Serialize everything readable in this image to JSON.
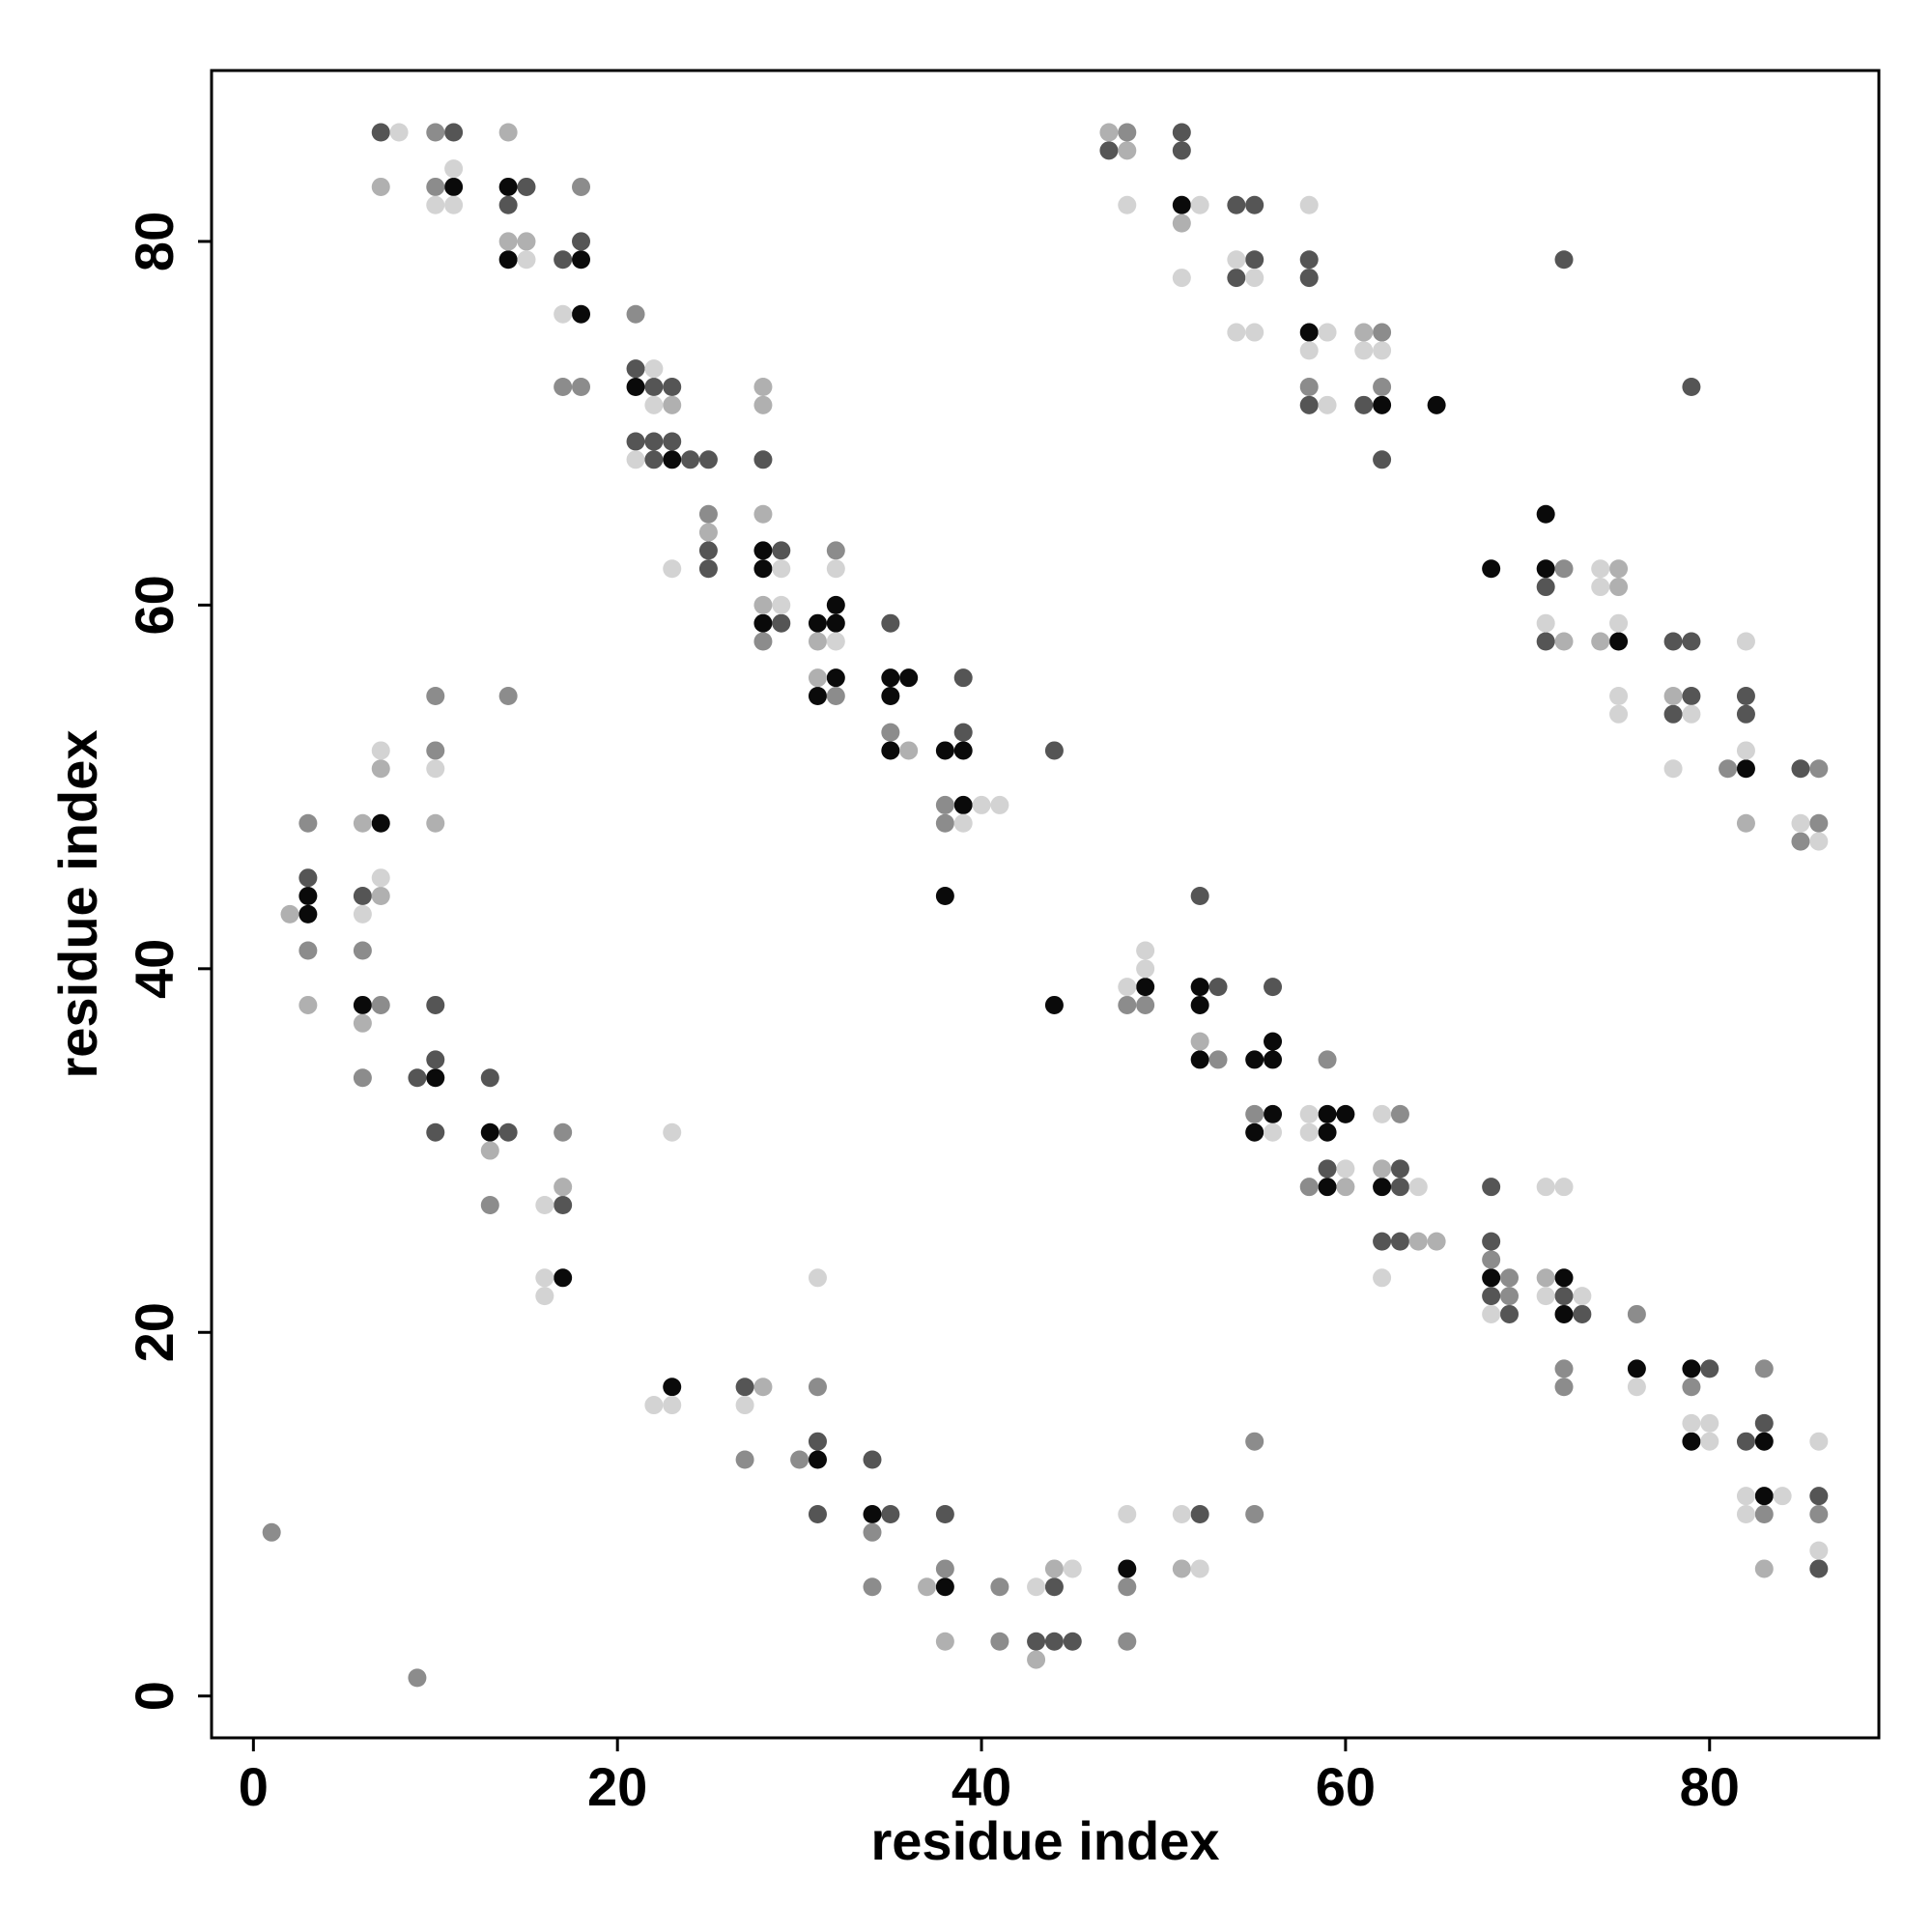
{
  "chart_data": {
    "type": "scatter",
    "xlabel": "residue index",
    "ylabel": "residue index",
    "xlim": [
      -2.3,
      89.3
    ],
    "ylim": [
      -2.3,
      89.4
    ],
    "xticks": [
      0,
      20,
      40,
      60,
      80
    ],
    "yticks": [
      0,
      20,
      40,
      60,
      80
    ],
    "grid": false,
    "series": [
      {
        "color": "#0a0a0a",
        "x": [
          11,
          14,
          14,
          18,
          18,
          21,
          23,
          28,
          28,
          28,
          31,
          32,
          32,
          32,
          31,
          35,
          36,
          35,
          35,
          38,
          39,
          39,
          38,
          7,
          3,
          3,
          6,
          10,
          13,
          17,
          23,
          31,
          34,
          38,
          48,
          44,
          49,
          52,
          52,
          52,
          55,
          56,
          56,
          56,
          55,
          59,
          60,
          59,
          59,
          62,
          68,
          72,
          72,
          76,
          79,
          79,
          83,
          83,
          51,
          58,
          62,
          65,
          71,
          68,
          71,
          75,
          82
        ],
        "values": [
          83,
          83,
          79,
          79,
          76,
          72,
          68,
          63,
          62,
          59,
          59,
          59,
          60,
          56,
          55,
          56,
          56,
          55,
          52,
          52,
          52,
          49,
          44,
          48,
          44,
          43,
          38,
          34,
          31,
          23,
          17,
          13,
          10,
          6,
          7,
          38,
          39,
          39,
          38,
          35,
          35,
          35,
          36,
          32,
          31,
          32,
          32,
          31,
          28,
          28,
          23,
          23,
          21,
          18,
          18,
          14,
          14,
          11,
          82,
          75,
          71,
          71,
          65,
          62,
          62,
          58,
          51
        ]
      },
      {
        "color": "#555555",
        "x": [
          7,
          11,
          15,
          14,
          17,
          18,
          21,
          22,
          23,
          21,
          22,
          23,
          22,
          24,
          25,
          25,
          25,
          28,
          29,
          29,
          35,
          39,
          39,
          44,
          3,
          6,
          10,
          9,
          10,
          13,
          10,
          14,
          17,
          27,
          31,
          31,
          34,
          35,
          38,
          44,
          43,
          44,
          45,
          52,
          52,
          53,
          56,
          59,
          63,
          63,
          62,
          63,
          68,
          68,
          68,
          69,
          72,
          73,
          80,
          82,
          83,
          86,
          86,
          47,
          51,
          51,
          54,
          55,
          55,
          54,
          58,
          58,
          58,
          61,
          62,
          72,
          79,
          71,
          71,
          78,
          79,
          79,
          78,
          82,
          82,
          85
        ],
        "values": [
          86,
          86,
          83,
          82,
          79,
          80,
          73,
          72,
          72,
          69,
          69,
          69,
          68,
          68,
          68,
          63,
          62,
          68,
          63,
          59,
          59,
          56,
          53,
          52,
          45,
          44,
          38,
          34,
          35,
          34,
          31,
          31,
          27,
          17,
          14,
          10,
          13,
          10,
          10,
          6,
          3,
          3,
          3,
          10,
          44,
          39,
          39,
          29,
          29,
          28,
          25,
          25,
          28,
          25,
          22,
          21,
          22,
          21,
          18,
          14,
          15,
          11,
          7,
          85,
          86,
          85,
          82,
          82,
          79,
          78,
          79,
          78,
          71,
          71,
          68,
          79,
          72,
          61,
          58,
          58,
          58,
          55,
          54,
          55,
          54,
          51
        ]
      },
      {
        "color": "#8c8c8c",
        "x": [
          10,
          10,
          18,
          17,
          18,
          21,
          25,
          28,
          32,
          32,
          35,
          38,
          38,
          10,
          14,
          10,
          3,
          3,
          6,
          7,
          6,
          17,
          13,
          1,
          9,
          27,
          30,
          31,
          34,
          34,
          38,
          41,
          41,
          48,
          48,
          55,
          55,
          48,
          49,
          53,
          55,
          59,
          58,
          63,
          68,
          69,
          69,
          72,
          72,
          76,
          79,
          83,
          83,
          86,
          48,
          58,
          62,
          62,
          72,
          81,
          86,
          86,
          85
        ],
        "values": [
          86,
          83,
          83,
          72,
          72,
          76,
          65,
          58,
          63,
          55,
          53,
          49,
          48,
          55,
          55,
          52,
          48,
          41,
          41,
          38,
          34,
          31,
          27,
          9,
          1,
          13,
          13,
          17,
          9,
          6,
          7,
          6,
          3,
          6,
          3,
          10,
          14,
          38,
          38,
          35,
          32,
          35,
          28,
          32,
          24,
          23,
          22,
          18,
          17,
          21,
          17,
          18,
          10,
          10,
          86,
          72,
          75,
          72,
          62,
          51,
          51,
          48,
          47
        ]
      },
      {
        "color": "#b0b0b0",
        "x": [
          7,
          14,
          14,
          15,
          23,
          25,
          28,
          28,
          28,
          28,
          31,
          31,
          36,
          7,
          6,
          10,
          7,
          2,
          3,
          6,
          13,
          17,
          28,
          38,
          37,
          44,
          43,
          51,
          52,
          60,
          62,
          64,
          65,
          71,
          47,
          48,
          51,
          61,
          75,
          75,
          72,
          74,
          78,
          82,
          83
        ],
        "values": [
          83,
          86,
          80,
          80,
          71,
          64,
          72,
          71,
          65,
          60,
          58,
          56,
          52,
          51,
          48,
          48,
          44,
          43,
          38,
          37,
          30,
          28,
          17,
          3,
          6,
          7,
          2,
          7,
          36,
          28,
          29,
          25,
          25,
          23,
          86,
          85,
          81,
          75,
          62,
          61,
          58,
          58,
          55,
          48,
          7
        ]
      },
      {
        "color": "#d3d3d3",
        "x": [
          8,
          11,
          10,
          11,
          15,
          17,
          22,
          22,
          21,
          23,
          29,
          29,
          32,
          32,
          40,
          41,
          39,
          7,
          10,
          7,
          6,
          16,
          16,
          16,
          23,
          22,
          23,
          27,
          31,
          43,
          45,
          48,
          51,
          52,
          48,
          49,
          49,
          56,
          58,
          58,
          60,
          62,
          64,
          62,
          68,
          71,
          72,
          71,
          73,
          76,
          79,
          80,
          80,
          82,
          84,
          82,
          86,
          86,
          48,
          52,
          51,
          54,
          55,
          54,
          55,
          58,
          59,
          58,
          59,
          61,
          62,
          74,
          74,
          71,
          75,
          75,
          75,
          79,
          78,
          82,
          82,
          85,
          86
        ],
        "values": [
          86,
          84,
          82,
          82,
          79,
          76,
          73,
          71,
          68,
          62,
          62,
          60,
          62,
          58,
          49,
          49,
          48,
          52,
          51,
          45,
          43,
          27,
          23,
          22,
          31,
          16,
          16,
          16,
          23,
          6,
          7,
          10,
          10,
          7,
          39,
          40,
          41,
          31,
          32,
          31,
          29,
          32,
          28,
          23,
          21,
          28,
          28,
          22,
          22,
          17,
          15,
          15,
          14,
          11,
          11,
          10,
          14,
          8,
          82,
          82,
          78,
          79,
          78,
          75,
          75,
          82,
          75,
          74,
          71,
          74,
          74,
          62,
          61,
          59,
          59,
          55,
          54,
          54,
          51,
          58,
          52,
          48,
          47
        ]
      }
    ]
  }
}
